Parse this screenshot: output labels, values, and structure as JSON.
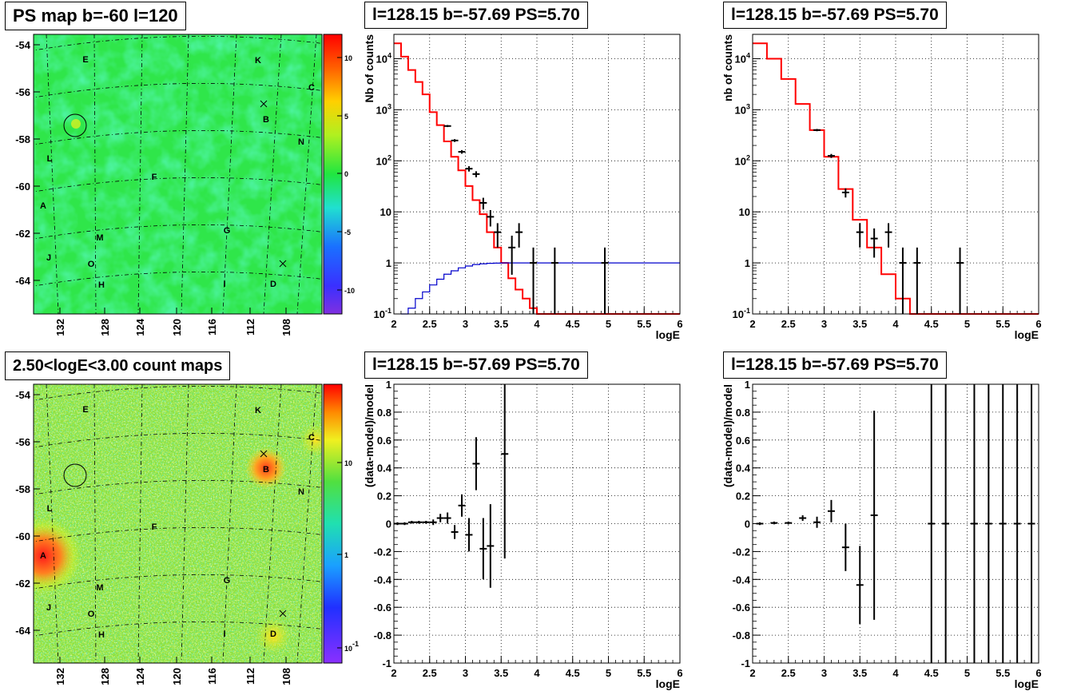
{
  "panels": {
    "ps_map": {
      "title": "PS map b=-60 l=120"
    },
    "count_map": {
      "title": "2.50<logE<3.00 count maps"
    },
    "spec1": {
      "title": "l=128.15 b=-57.69 PS=5.70"
    },
    "spec2": {
      "title": "l=128.15 b=-57.69 PS=5.70"
    },
    "res1": {
      "title": "l=128.15 b=-57.69 PS=5.70"
    },
    "res2": {
      "title": "l=128.15 b=-57.69 PS=5.70"
    }
  },
  "maps": {
    "lat_ticks": [
      "-54",
      "-56",
      "-58",
      "-60",
      "-62",
      "-64"
    ],
    "lon_ticks": [
      "132",
      "128",
      "124",
      "120",
      "116",
      "112",
      "108"
    ],
    "source_labels": [
      "E",
      "K",
      "C",
      "B",
      "N",
      "L",
      "F",
      "A",
      "G",
      "M",
      "J",
      "O",
      "H",
      "I",
      "D"
    ],
    "ps_colorbar_ticks": [
      "10",
      "5",
      "0",
      "-5",
      "-10"
    ],
    "count_colorbar_ticks": [
      "10",
      "1",
      "10-1"
    ],
    "colors": {
      "map_green": "#33e64d",
      "hot": "#ff2020",
      "cold": "#7a3cff"
    }
  },
  "chart_data": [
    {
      "type": "line",
      "panel": "top-middle",
      "title": "l=128.15 b=-57.69 PS=5.70",
      "xlabel": "logE",
      "ylabel": "Nb of counts",
      "xlim": [
        2,
        6
      ],
      "ylim": [
        0.1,
        30000
      ],
      "yscale": "log",
      "x_ticks": [
        "2",
        "2.5",
        "3",
        "3.5",
        "4",
        "4.5",
        "5",
        "5.5",
        "6"
      ],
      "y_ticks": [
        "10-1",
        "1",
        "10",
        "102",
        "103",
        "104"
      ],
      "grid": true,
      "series": [
        {
          "style": "step",
          "color": "#ff0000",
          "x": [
            2.0,
            2.1,
            2.2,
            2.3,
            2.4,
            2.5,
            2.6,
            2.7,
            2.8,
            2.9,
            3.0,
            3.1,
            3.2,
            3.3,
            3.4,
            3.5,
            3.6,
            3.7,
            3.8,
            3.9,
            4.0,
            4.1
          ],
          "values": [
            20000,
            11000,
            6000,
            3500,
            2000,
            900,
            500,
            240,
            120,
            65,
            32,
            17,
            9,
            4,
            2,
            1,
            0.5,
            0.3,
            0.2,
            0.13,
            0.1,
            0.1
          ]
        },
        {
          "style": "step",
          "color": "#0000cc",
          "x": [
            2.1,
            2.2,
            2.3,
            2.4,
            2.5,
            2.6,
            2.7,
            2.8,
            2.9,
            3.0,
            3.1,
            3.2,
            3.3,
            3.4,
            3.5,
            3.6,
            3.7,
            3.8,
            3.9,
            4.0,
            4.1,
            4.2,
            4.3,
            4.4,
            4.5,
            4.6,
            4.7,
            4.8,
            4.9,
            5.0,
            5.1,
            5.2,
            5.3,
            5.4,
            5.5,
            5.6,
            5.7,
            5.8,
            5.9
          ],
          "values": [
            0.1,
            0.13,
            0.2,
            0.27,
            0.37,
            0.48,
            0.6,
            0.7,
            0.8,
            0.87,
            0.93,
            0.96,
            0.98,
            0.99,
            1,
            1,
            1,
            1,
            1,
            1,
            1,
            1,
            1,
            1,
            1,
            1,
            1,
            1,
            1,
            1,
            1,
            1,
            1,
            1,
            1,
            1,
            1,
            1,
            1
          ]
        },
        {
          "style": "points",
          "color": "#000000",
          "x": [
            2.75,
            2.85,
            2.95,
            3.05,
            3.15,
            3.25,
            3.35,
            3.45,
            3.65,
            3.75,
            3.95,
            4.25,
            4.95
          ],
          "values": [
            480,
            250,
            150,
            70,
            55,
            15,
            8,
            4,
            2,
            4,
            1,
            1,
            1
          ]
        }
      ]
    },
    {
      "type": "line",
      "panel": "top-right",
      "title": "l=128.15 b=-57.69 PS=5.70",
      "xlabel": "logE",
      "ylabel": "nb of counts",
      "xlim": [
        2,
        6
      ],
      "ylim": [
        0.1,
        30000
      ],
      "yscale": "log",
      "x_ticks": [
        "2",
        "2.5",
        "3",
        "3.5",
        "4",
        "4.5",
        "5",
        "5.5",
        "6"
      ],
      "y_ticks": [
        "10-1",
        "1",
        "10",
        "102",
        "103",
        "104"
      ],
      "grid": true,
      "series": [
        {
          "style": "step",
          "color": "#ff0000",
          "x": [
            2.0,
            2.2,
            2.4,
            2.6,
            2.8,
            3.0,
            3.2,
            3.4,
            3.6,
            3.8,
            4.0,
            4.2,
            4.4
          ],
          "values": [
            20000,
            10000,
            4000,
            1300,
            400,
            120,
            28,
            7,
            2,
            0.6,
            0.2,
            0.1,
            0.1
          ]
        },
        {
          "style": "points",
          "color": "#000000",
          "x": [
            2.9,
            3.1,
            3.3,
            3.5,
            3.7,
            3.9,
            4.1,
            4.3,
            4.9
          ],
          "values": [
            400,
            125,
            24,
            4,
            3,
            4,
            1,
            1,
            1
          ]
        }
      ]
    },
    {
      "type": "scatter",
      "panel": "bottom-middle",
      "title": "l=128.15 b=-57.69 PS=5.70",
      "xlabel": "logE",
      "ylabel": "(data-model)/model",
      "xlim": [
        2,
        6
      ],
      "ylim": [
        -1,
        1
      ],
      "x_ticks": [
        "2",
        "2.5",
        "3",
        "3.5",
        "4",
        "4.5",
        "5",
        "5.5",
        "6"
      ],
      "y_ticks": [
        "-1",
        "-0.8",
        "-0.6",
        "-0.4",
        "-0.2",
        "0",
        "0.2",
        "0.4",
        "0.6",
        "0.8",
        "1"
      ],
      "grid": true,
      "series": [
        {
          "x": [
            2.05,
            2.15,
            2.25,
            2.35,
            2.45,
            2.55,
            2.65,
            2.75,
            2.85,
            2.95,
            3.05,
            3.15,
            3.25,
            3.35,
            3.55
          ],
          "values": [
            0,
            0,
            0.01,
            0.01,
            0.01,
            0.01,
            0.04,
            0.04,
            -0.06,
            0.13,
            -0.08,
            0.43,
            -0.18,
            -0.16,
            0.5
          ],
          "err": [
            0.01,
            0.01,
            0.01,
            0.01,
            0.01,
            0.02,
            0.03,
            0.04,
            0.05,
            0.08,
            0.12,
            0.19,
            0.22,
            0.3,
            0.75
          ]
        }
      ]
    },
    {
      "type": "scatter",
      "panel": "bottom-right",
      "title": "l=128.15 b=-57.69 PS=5.70",
      "xlabel": "logE",
      "ylabel": "(data-model)/model",
      "xlim": [
        2,
        6
      ],
      "ylim": [
        -1,
        1
      ],
      "x_ticks": [
        "2",
        "2.5",
        "3",
        "3.5",
        "4",
        "4.5",
        "5",
        "5.5",
        "6"
      ],
      "y_ticks": [
        "-1",
        "-0.8",
        "-0.6",
        "-0.4",
        "-0.2",
        "0",
        "0.2",
        "0.4",
        "0.6",
        "0.8",
        "1"
      ],
      "grid": true,
      "series": [
        {
          "x": [
            2.1,
            2.3,
            2.5,
            2.7,
            2.9,
            3.1,
            3.3,
            3.5,
            3.7
          ],
          "values": [
            0,
            0.005,
            0.005,
            0.04,
            0.01,
            0.09,
            -0.17,
            -0.44,
            0.06
          ],
          "err": [
            0.01,
            0.01,
            0.01,
            0.02,
            0.04,
            0.08,
            0.17,
            0.28,
            0.75
          ]
        },
        {
          "x": [
            4.5,
            4.7,
            5.1,
            5.3,
            5.5,
            5.7,
            5.9
          ],
          "values": [
            0,
            0,
            0,
            0,
            0,
            0,
            0
          ],
          "err": [
            1,
            1,
            1,
            1,
            1,
            1,
            1
          ]
        }
      ]
    }
  ]
}
